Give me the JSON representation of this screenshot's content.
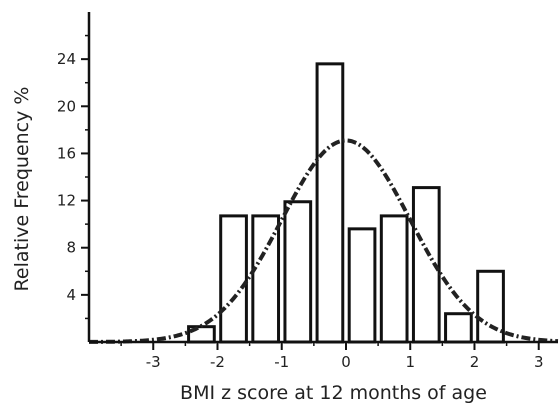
{
  "chart_data": {
    "type": "bar",
    "xlabel": "BMI z score at 12 months of age",
    "ylabel": "Relative  Frequency  %",
    "xlim": [
      -4.0,
      3.3
    ],
    "ylim": [
      0,
      28
    ],
    "x_ticks": [
      -3,
      -2,
      -1,
      0,
      1,
      2,
      3
    ],
    "y_ticks": [
      4,
      8,
      12,
      16,
      20,
      24
    ],
    "bin_width": 0.5,
    "bins": [
      {
        "x": -2.25,
        "value": 1.3
      },
      {
        "x": -1.75,
        "value": 10.7
      },
      {
        "x": -1.25,
        "value": 10.7
      },
      {
        "x": -0.75,
        "value": 11.9
      },
      {
        "x": -0.25,
        "value": 23.6
      },
      {
        "x": 0.25,
        "value": 9.6
      },
      {
        "x": 0.75,
        "value": 10.7
      },
      {
        "x": 1.25,
        "value": 13.1
      },
      {
        "x": 1.75,
        "value": 2.4
      },
      {
        "x": 2.25,
        "value": 6.0
      }
    ],
    "normal_curve": {
      "mean": 0.0,
      "sd": 1.0,
      "peak": 17.1,
      "style": "dash-dot"
    },
    "grid": false,
    "legend": "none",
    "colors": {
      "bar_fill": "#ffffff",
      "bar_stroke": "#111111",
      "curve": "#222222",
      "axis": "#111111"
    }
  }
}
